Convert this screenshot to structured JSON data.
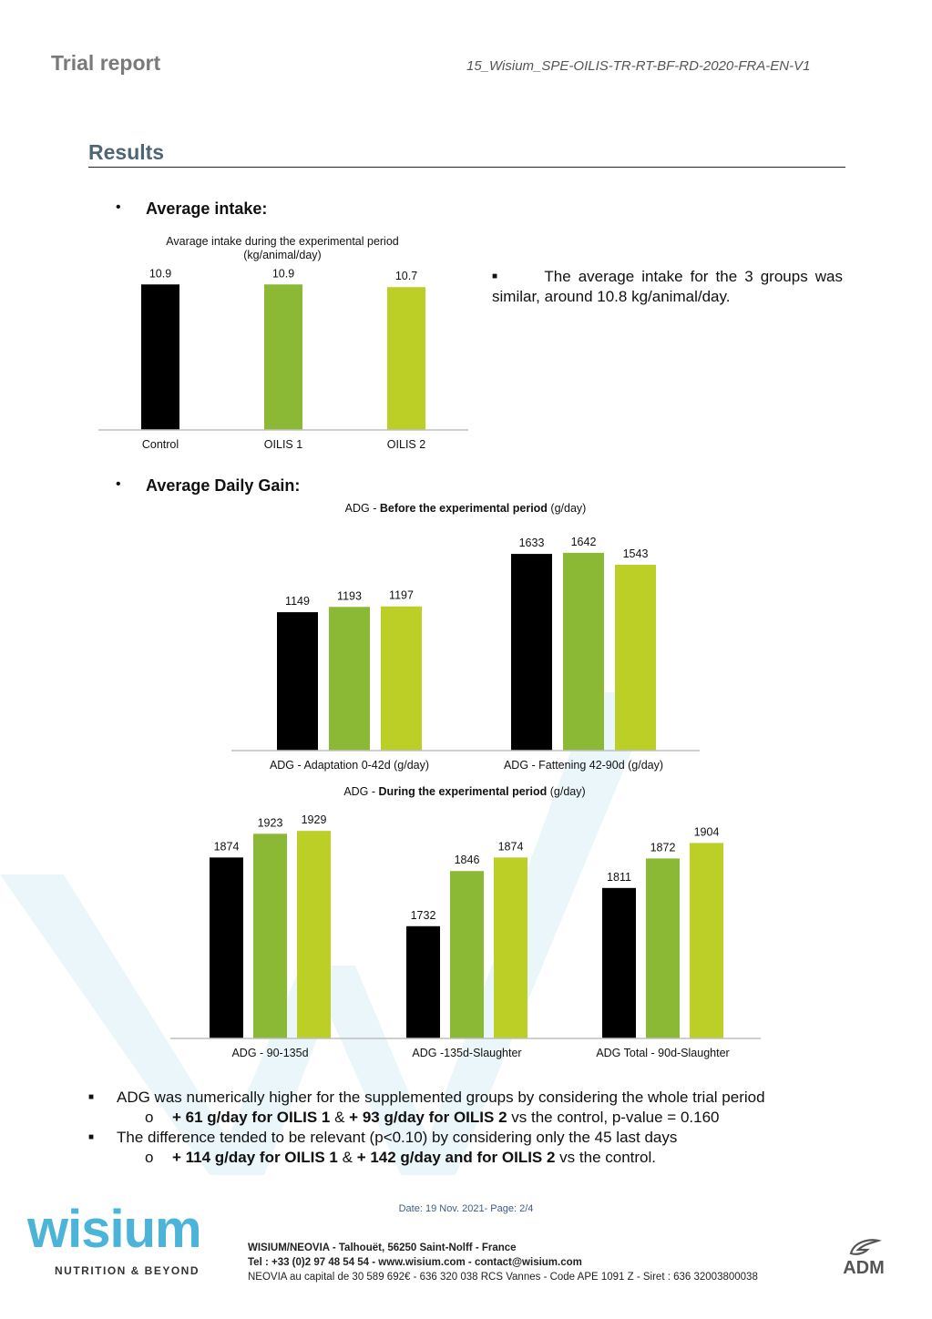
{
  "header": {
    "title": "Trial report",
    "reference": "15_Wisium_SPE-OILIS-TR-RT-BF-RD-2020-FRA-EN-V1"
  },
  "section": {
    "title": "Results"
  },
  "intake": {
    "heading": "Average intake:",
    "note": "The average intake for the 3 groups was similar, around 10.8 kg/animal/day."
  },
  "adg": {
    "heading": "Average Daily Gain:"
  },
  "colors": {
    "control": "#000000",
    "oilis1": "#8bb935",
    "oilis2": "#bccf27"
  },
  "chart_data": [
    {
      "type": "bar",
      "title": "Avarage intake during the experimental period",
      "subtitle": "(kg/animal/day)",
      "categories": [
        "Control",
        "OILIS 1",
        "OILIS 2"
      ],
      "values": [
        10.9,
        10.9,
        10.7
      ],
      "labels": [
        "10.9",
        "10.9",
        "10.7"
      ],
      "ylim": [
        0,
        11.6
      ]
    },
    {
      "type": "bar",
      "title_prefix": "ADG - ",
      "title_bold": "Before the experimental period",
      "title_suffix": " (g/day)",
      "categories": [
        "ADG - Adaptation 0-42d (g/day)",
        "ADG - Fattening 42-90d (g/day)"
      ],
      "series": [
        {
          "values": [
            1149,
            1633
          ]
        },
        {
          "values": [
            1193,
            1642
          ]
        },
        {
          "values": [
            1197,
            1543
          ]
        }
      ],
      "ylim": [
        0,
        1800
      ]
    },
    {
      "type": "bar",
      "title_prefix": "ADG - ",
      "title_bold": "During the experimental period",
      "title_suffix": " (g/day)",
      "categories": [
        "ADG - 90-135d",
        "ADG -135d-Slaughter",
        "ADG Total - 90d-Slaughter"
      ],
      "series": [
        {
          "values": [
            1874,
            1732,
            1811
          ]
        },
        {
          "values": [
            1923,
            1846,
            1872
          ]
        },
        {
          "values": [
            1929,
            1874,
            1904
          ]
        }
      ],
      "ylim": [
        1500,
        1950
      ]
    }
  ],
  "conclusions": {
    "line1": "ADG was numerically higher for the supplemented groups by considering the whole trial period",
    "line2_bold1": "+ 61 g/day for OILIS 1",
    "line2_mid": " & ",
    "line2_bold2": "+ 93 g/day for OILIS 2",
    "line2_rest": " vs the control, p-value = 0.160",
    "line3": "The difference tended to be relevant (p<0.10) by considering only the 45 last days",
    "line4_bold1": "+ 114 g/day for OILIS 1",
    "line4_mid": " & ",
    "line4_bold2": "+ 142 g/day and for OILIS 2",
    "line4_rest": " vs the control."
  },
  "footer": {
    "date": "Date:  19 Nov. 2021- Page: 2/4",
    "logo_text": "wisium",
    "logo_tagline": "NUTRITION & BEYOND",
    "company": "WISIUM/NEOVIA - Talhouët, 56250 Saint-Nolff - France",
    "contact": "Tel : +33 (0)2 97 48 54 54 - www.wisium.com - contact@wisium.com",
    "legal": "NEOVIA au capital de 30 589 692€ - 636 320 038 RCS Vannes - Code APE 1091 Z - Siret : 636 32003800038",
    "adm_logo": "ADM"
  }
}
